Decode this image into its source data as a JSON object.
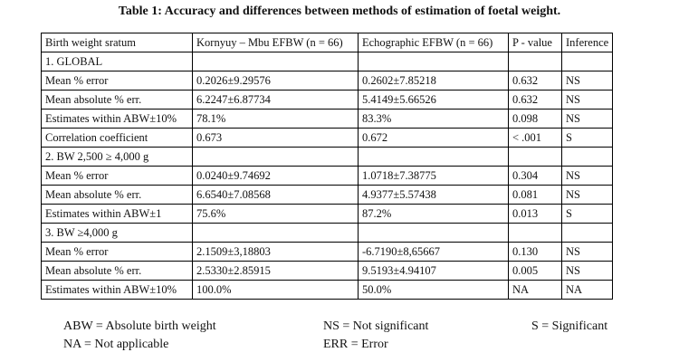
{
  "title": "Table 1: Accuracy and differences between methods of estimation of foetal weight.",
  "headers": [
    "Birth weight sratum",
    "Kornyuy – Mbu EFBW (n = 66)",
    "Echographic EFBW (n = 66)",
    "P - value",
    "Inference"
  ],
  "rows": [
    [
      "1. GLOBAL",
      "",
      "",
      "",
      ""
    ],
    [
      "Mean % error",
      "0.2026±9.29576",
      "0.2602±7.85218",
      "0.632",
      "NS"
    ],
    [
      "Mean absolute % err.",
      "6.2247±6.87734",
      "5.4149±5.66526",
      "0.632",
      "NS"
    ],
    [
      "Estimates within ABW±10%",
      "78.1%",
      "83.3%",
      "0.098",
      "NS"
    ],
    [
      "Correlation coefficient",
      "0.673",
      "0.672",
      "< .001",
      "S"
    ],
    [
      "2. BW 2,500 ≥ 4,000 g",
      "",
      "",
      "",
      ""
    ],
    [
      "Mean % error",
      "0.0240±9.74692",
      "1.0718±7.38775",
      "0.304",
      "NS"
    ],
    [
      "Mean absolute % err.",
      "6.6540±7.08568",
      "4.9377±5.57438",
      "0.081",
      "NS"
    ],
    [
      "Estimates within ABW±1",
      "75.6%",
      "87.2%",
      "0.013",
      "S"
    ],
    [
      "3. BW ≥4,000 g",
      "",
      "",
      "",
      ""
    ],
    [
      "Mean % error",
      "2.1509±3,18803",
      "-6.7190±8,65667",
      "0.130",
      "NS"
    ],
    [
      "Mean absolute % err.",
      "2.5330±2.85915",
      " 9.5193±4.94107",
      "0.005",
      "NS"
    ],
    [
      "Estimates within ABW±10%",
      "100.0%",
      "50.0%",
      "NA",
      "NA"
    ]
  ],
  "legend": {
    "abw": "ABW = Absolute birth weight",
    "ns": "NS = Not significant",
    "s": "S = Significant",
    "na": "NA = Not applicable",
    "err": "ERR = Error"
  }
}
